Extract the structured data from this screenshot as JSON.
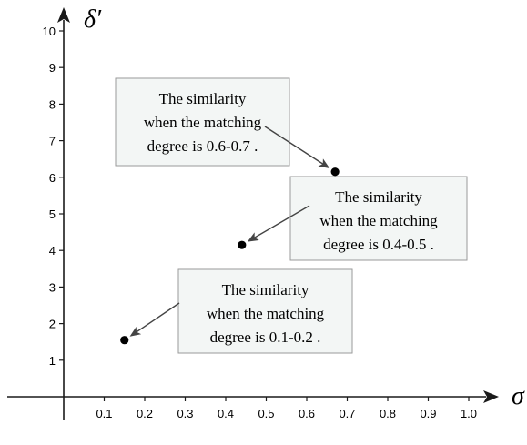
{
  "chart_data": {
    "type": "scatter",
    "title": "",
    "xlabel": "σ",
    "ylabel": "δ′",
    "xlim": [
      0,
      1.0
    ],
    "ylim": [
      0,
      10
    ],
    "x_ticks": [
      0.1,
      0.2,
      0.3,
      0.4,
      0.5,
      0.6,
      0.7,
      0.8,
      0.9,
      1.0
    ],
    "x_tick_labels": [
      "0.1",
      "0.2",
      "0.3",
      "0.4",
      "0.5",
      "0.6",
      "0.7",
      "0.8",
      "0.9",
      "1.0"
    ],
    "y_ticks": [
      1,
      2,
      3,
      4,
      5,
      6,
      7,
      8,
      9,
      10
    ],
    "y_tick_labels": [
      "1",
      "2",
      "3",
      "4",
      "5",
      "6",
      "7",
      "8",
      "9",
      "10"
    ],
    "grid": false,
    "points": [
      {
        "x": 0.15,
        "y": 1.55
      },
      {
        "x": 0.44,
        "y": 4.15
      },
      {
        "x": 0.67,
        "y": 6.15
      }
    ],
    "annotations": [
      {
        "lines": [
          "The similarity",
          "when the matching",
          "degree is 0.6-0.7 ."
        ],
        "point_index": 2
      },
      {
        "lines": [
          "The similarity",
          "when the matching",
          "degree is 0.4-0.5 ."
        ],
        "point_index": 1
      },
      {
        "lines": [
          "The similarity",
          "when the matching",
          "degree is 0.1-0.2 ."
        ],
        "point_index": 0
      }
    ],
    "colors": {
      "point": "#000000",
      "axis": "#1a1a1a",
      "callout_fill": "#f3f6f5",
      "callout_border": "#9a9a9a",
      "arrow": "#444444"
    }
  }
}
